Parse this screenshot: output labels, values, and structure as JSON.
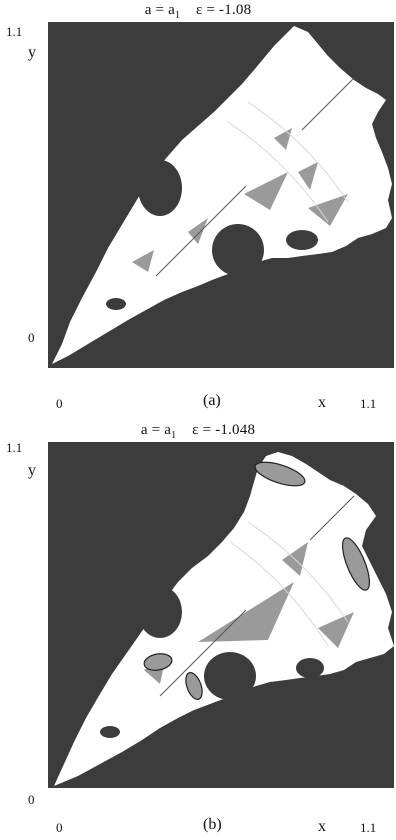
{
  "figure": {
    "panels": [
      {
        "id": "a",
        "title_lhs": "a = a",
        "title_sub": "1",
        "title_eps": "ε = -1.08",
        "y_label": "y",
        "x_label": "x",
        "y_top_tick": "1.1",
        "y_bottom_tick": "0",
        "x_left_tick": "0",
        "x_right_tick": "1.1",
        "panel_label": "(a)"
      },
      {
        "id": "b",
        "title_lhs": "a = a",
        "title_sub": "1",
        "title_eps": "ε = -1.048",
        "y_label": "y",
        "x_label": "x",
        "y_top_tick": "1.1",
        "y_bottom_tick": "0",
        "x_left_tick": "0",
        "x_right_tick": "1.1",
        "panel_label": "(b)"
      }
    ]
  },
  "colors": {
    "background_region": "#3c3c3c",
    "basin": "#ffffff",
    "gray_region": "#9a9a9a"
  }
}
